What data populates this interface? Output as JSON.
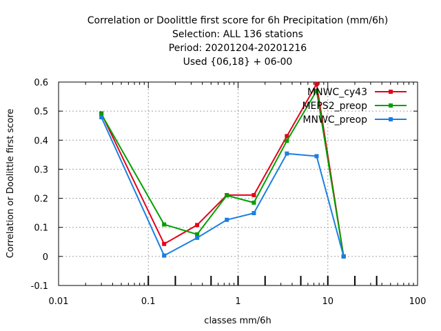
{
  "chart_data": {
    "type": "line",
    "title_lines": [
      "Correlation or Doolittle first score  for 6h Precipitation (mm/6h)",
      "Selection: ALL    136 stations",
      "Period: 20201204-20201216",
      "Used {06,18} + 06-00"
    ],
    "xlabel": "classes mm/6h",
    "ylabel": "Correlation or Doolittle first score",
    "xscale": "log",
    "xlim": [
      0.01,
      100
    ],
    "ylim": [
      -0.1,
      0.6
    ],
    "x_ticks": [
      0.01,
      0.1,
      1,
      10,
      100
    ],
    "x_tick_labels": [
      "0.01",
      "0.1",
      "1",
      "10",
      "100"
    ],
    "y_ticks": [
      -0.1,
      0,
      0.1,
      0.2,
      0.3,
      0.4,
      0.5,
      0.6
    ],
    "y_tick_labels": [
      "-0.1",
      "0",
      "0.1",
      "0.2",
      "0.3",
      "0.4",
      "0.5",
      "0.6"
    ],
    "x_markers": [
      0.1,
      0.2,
      0.5,
      1,
      2,
      5,
      10,
      20,
      35
    ],
    "grid": true,
    "legend_position": "top-right",
    "x": [
      0.03,
      0.15,
      0.35,
      0.75,
      1.5,
      3.5,
      7.5,
      15
    ],
    "series": [
      {
        "name": "MNWC_cy43",
        "color": "#e3001b",
        "values": [
          0.492,
          0.043,
          0.108,
          0.211,
          0.211,
          0.414,
          0.593,
          0.0
        ]
      },
      {
        "name": "MEPS2_preop",
        "color": "#00a000",
        "values": [
          0.49,
          0.11,
          0.076,
          0.21,
          0.185,
          0.398,
          0.57,
          0.0
        ]
      },
      {
        "name": "MNWC_preop",
        "color": "#1a7fe0",
        "values": [
          0.479,
          0.003,
          0.064,
          0.126,
          0.149,
          0.354,
          0.345,
          0.0
        ]
      }
    ]
  }
}
